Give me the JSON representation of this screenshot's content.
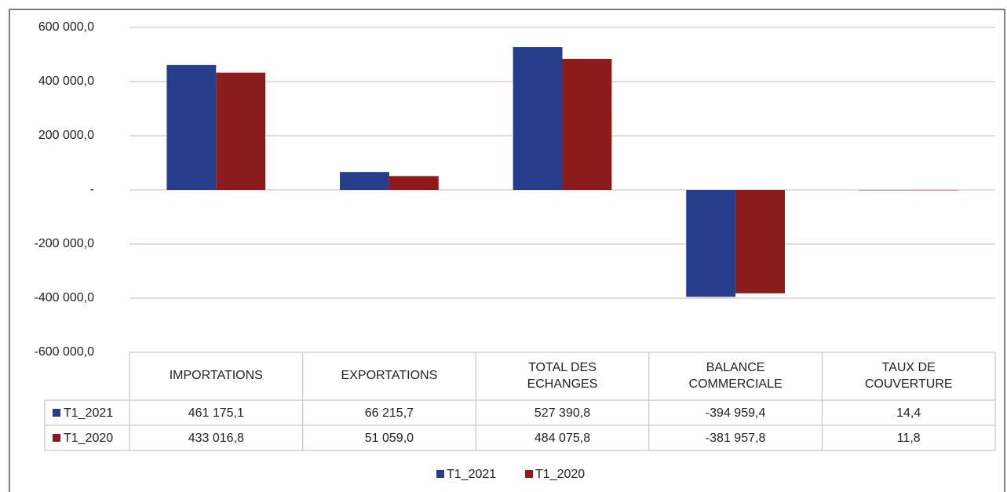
{
  "chart_data": {
    "type": "bar",
    "categories": [
      "IMPORTATIONS",
      "EXPORTATIONS",
      "TOTAL DES ECHANGES",
      "BALANCE COMMERCIALE",
      "TAUX DE COUVERTURE"
    ],
    "series": [
      {
        "name": "T1_2021",
        "color": "#263d8c",
        "values": [
          461175.1,
          66215.7,
          527390.8,
          -394959.4,
          14.4
        ],
        "value_labels": [
          "461 175,1",
          "66 215,7",
          "527 390,8",
          "-394 959,4",
          "14,4"
        ]
      },
      {
        "name": "T1_2020",
        "color": "#8c1b1b",
        "values": [
          433016.8,
          51059.0,
          484075.8,
          -381957.8,
          11.8
        ],
        "value_labels": [
          "433 016,8",
          "51 059,0",
          "484 075,8",
          "-381 957,8",
          "11,8"
        ]
      }
    ],
    "ylim": [
      -600000,
      600000
    ],
    "yticks": [
      {
        "value": -600000,
        "label": "-600 000,0"
      },
      {
        "value": -400000,
        "label": "-400 000,0"
      },
      {
        "value": -200000,
        "label": "-200 000,0"
      },
      {
        "value": 0,
        "label": "-"
      },
      {
        "value": 200000,
        "label": "200 000,0"
      },
      {
        "value": 400000,
        "label": "400 000,0"
      },
      {
        "value": 600000,
        "label": "600 000,0"
      }
    ],
    "grid": true
  }
}
